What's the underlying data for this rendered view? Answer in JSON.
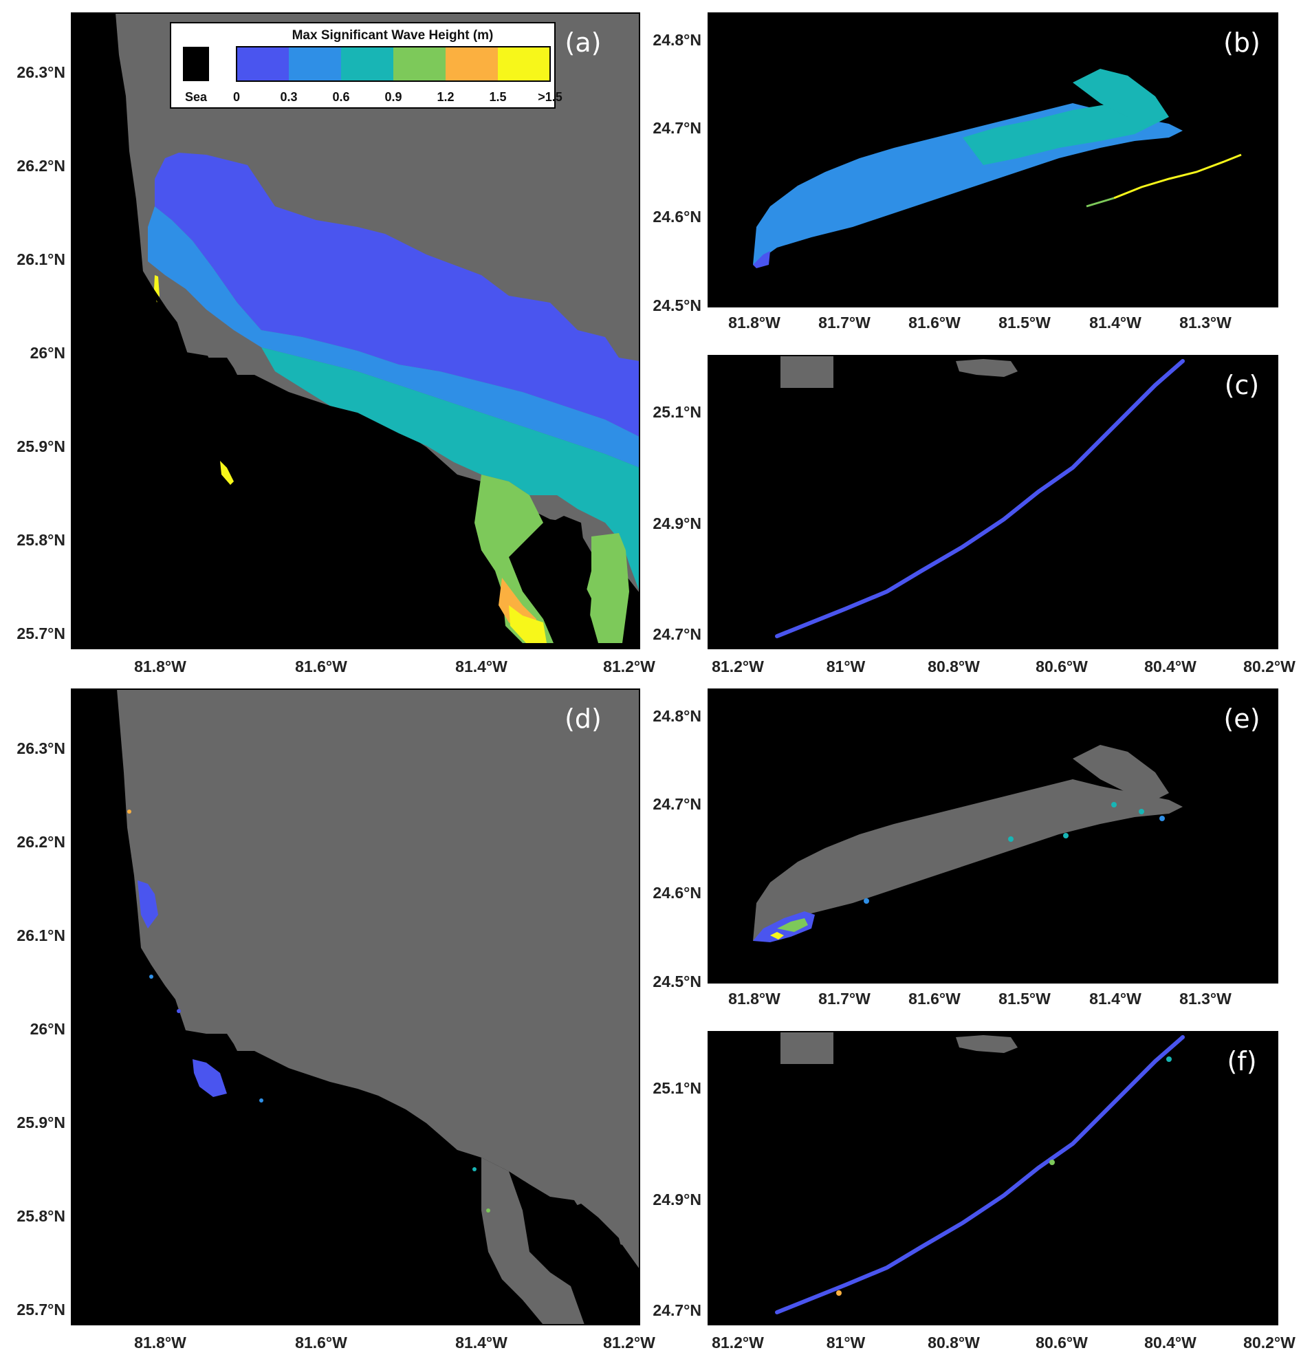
{
  "colors": {
    "land": "#000000",
    "sea": "#686868",
    "bins": [
      "#4a55ef",
      "#2f8fe6",
      "#18b5b5",
      "#7dc95a",
      "#fbb040",
      "#f7f71a"
    ]
  },
  "legend": {
    "title": "Max Significant Wave Height (m)",
    "sea_label": "Sea",
    "tick_labels": [
      "0",
      "0.3",
      "0.6",
      "0.9",
      "1.2",
      "1.5",
      ">1.5"
    ]
  },
  "panels": [
    {
      "id": "a",
      "label": "(a)",
      "y_ticks": [
        "26.3°N",
        "26.2°N",
        "26.1°N",
        "26°N",
        "25.9°N",
        "25.8°N",
        "25.7°N"
      ],
      "x_ticks": [
        "81.8°W",
        "81.6°W",
        "81.4°W",
        "81.2°W"
      ]
    },
    {
      "id": "b",
      "label": "(b)",
      "y_ticks": [
        "24.8°N",
        "24.7°N",
        "24.6°N",
        "24.5°N"
      ],
      "x_ticks": [
        "81.8°W",
        "81.7°W",
        "81.6°W",
        "81.5°W",
        "81.4°W",
        "81.3°W"
      ]
    },
    {
      "id": "c",
      "label": "(c)",
      "y_ticks": [
        "25.1°N",
        "24.9°N",
        "24.7°N"
      ],
      "x_ticks": [
        "81.2°W",
        "81°W",
        "80.8°W",
        "80.6°W",
        "80.4°W",
        "80.2°W"
      ]
    },
    {
      "id": "d",
      "label": "(d)",
      "y_ticks": [
        "26.3°N",
        "26.2°N",
        "26.1°N",
        "26°N",
        "25.9°N",
        "25.8°N",
        "25.7°N"
      ],
      "x_ticks": [
        "81.8°W",
        "81.6°W",
        "81.4°W",
        "81.2°W"
      ]
    },
    {
      "id": "e",
      "label": "(e)",
      "y_ticks": [
        "24.8°N",
        "24.7°N",
        "24.6°N",
        "24.5°N"
      ],
      "x_ticks": [
        "81.8°W",
        "81.7°W",
        "81.6°W",
        "81.5°W",
        "81.4°W",
        "81.3°W"
      ]
    },
    {
      "id": "f",
      "label": "(f)",
      "y_ticks": [
        "25.1°N",
        "24.9°N",
        "24.7°N"
      ],
      "x_ticks": [
        "81.2°W",
        "81°W",
        "80.8°W",
        "80.6°W",
        "80.4°W",
        "80.2°W"
      ]
    }
  ]
}
